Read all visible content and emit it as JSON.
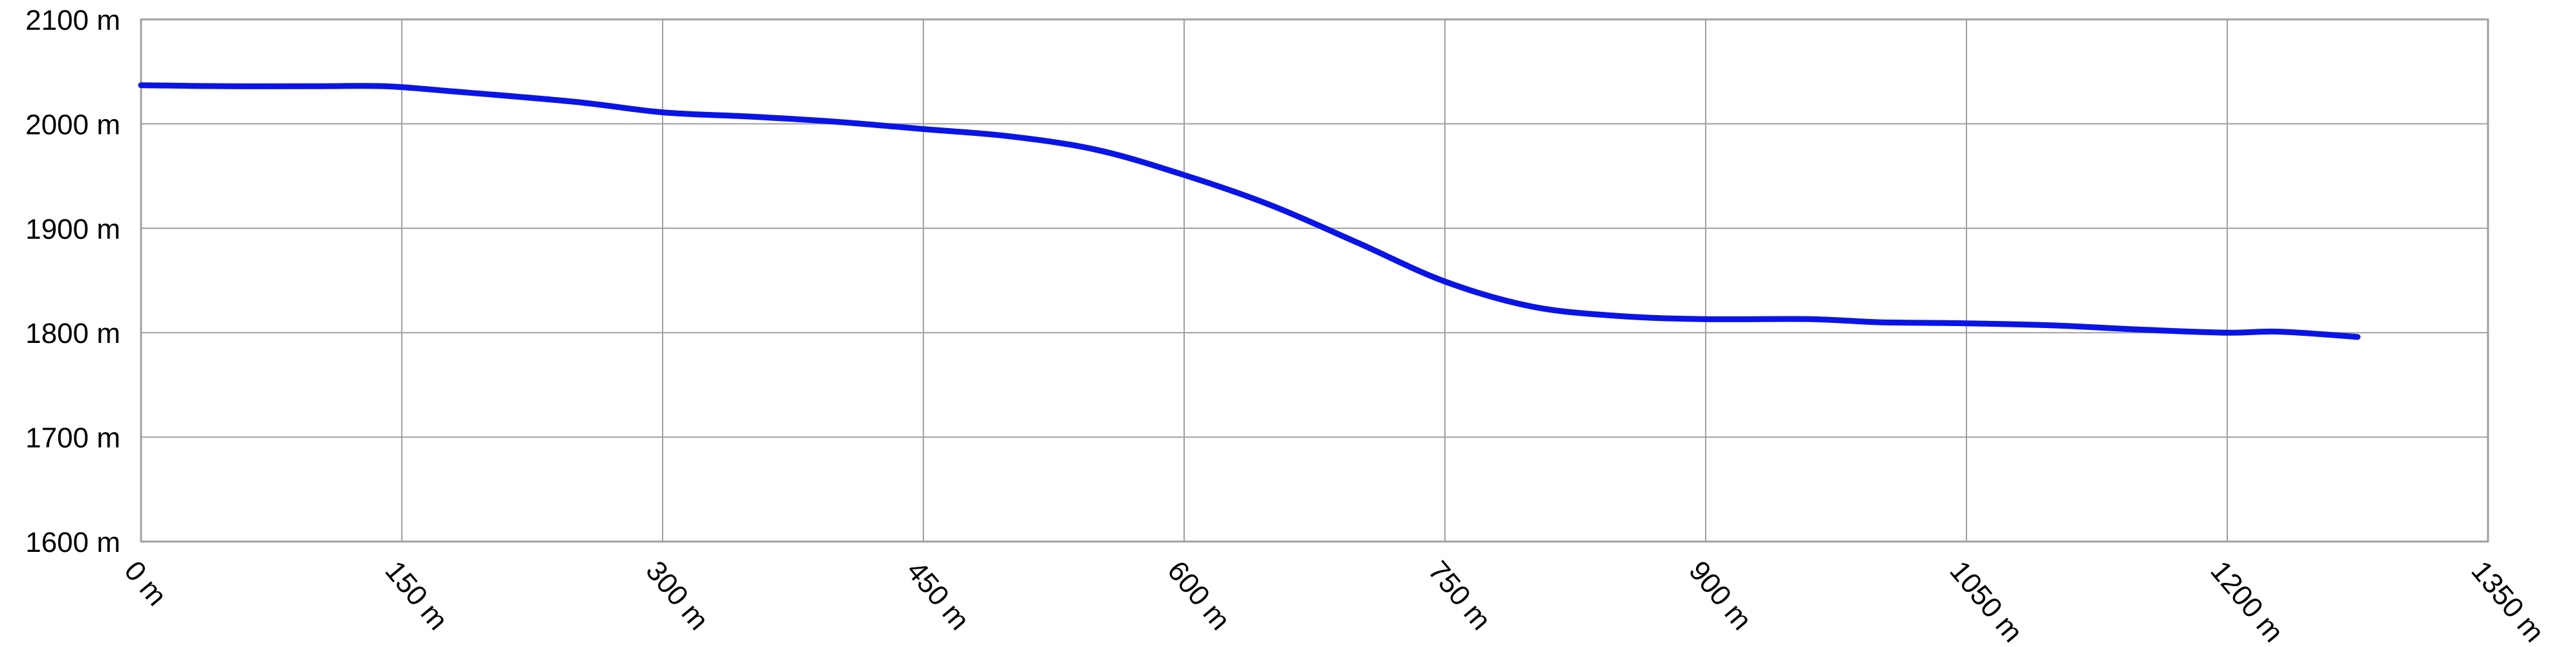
{
  "chart_data": {
    "type": "line",
    "x_tick_labels": [
      "0 m",
      "150 m",
      "300 m",
      "450 m",
      "600 m",
      "750 m",
      "900 m",
      "1050 m",
      "1200 m",
      "1350 m"
    ],
    "y_tick_labels": [
      "1600 m",
      "1700 m",
      "1800 m",
      "1900 m",
      "2000 m",
      "2100 m"
    ],
    "xlim": [
      0,
      1350
    ],
    "ylim": [
      1600,
      2100
    ],
    "x_ticks": [
      0,
      150,
      300,
      450,
      600,
      750,
      900,
      1050,
      1200,
      1350
    ],
    "y_ticks": [
      1600,
      1700,
      1800,
      1900,
      2000,
      2100
    ],
    "grid": true,
    "line_color": "#0a14e6",
    "grid_color": "#a0a0a0",
    "series": [
      {
        "points": [
          [
            0,
            2037
          ],
          [
            50,
            2036
          ],
          [
            100,
            2036
          ],
          [
            140,
            2036
          ],
          [
            180,
            2031
          ],
          [
            250,
            2021
          ],
          [
            300,
            2011
          ],
          [
            350,
            2007
          ],
          [
            400,
            2002
          ],
          [
            450,
            1995
          ],
          [
            500,
            1988
          ],
          [
            550,
            1975
          ],
          [
            600,
            1951
          ],
          [
            650,
            1922
          ],
          [
            700,
            1886
          ],
          [
            750,
            1849
          ],
          [
            800,
            1825
          ],
          [
            850,
            1816
          ],
          [
            900,
            1813
          ],
          [
            960,
            1813
          ],
          [
            1000,
            1810
          ],
          [
            1050,
            1809
          ],
          [
            1100,
            1807
          ],
          [
            1150,
            1803
          ],
          [
            1200,
            1800
          ],
          [
            1230,
            1801
          ],
          [
            1275,
            1796
          ]
        ]
      }
    ]
  }
}
